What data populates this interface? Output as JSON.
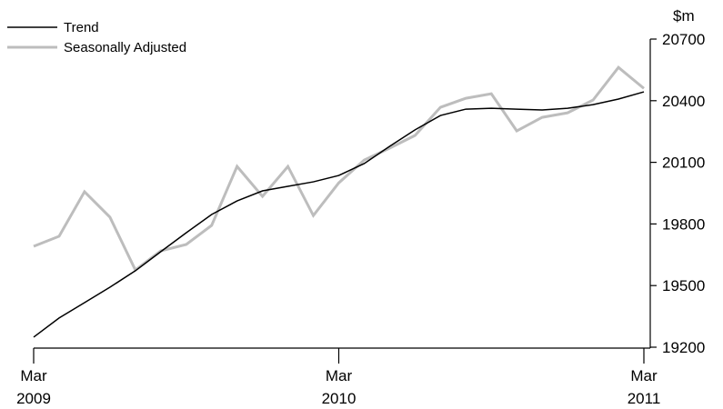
{
  "chart_data": {
    "type": "line",
    "y_label": "$m",
    "categories": [
      "Mar 2009",
      null,
      null,
      null,
      null,
      null,
      null,
      null,
      null,
      null,
      null,
      null,
      "Mar 2010",
      null,
      null,
      null,
      null,
      null,
      null,
      null,
      null,
      null,
      null,
      null,
      "Mar 2011"
    ],
    "series": [
      {
        "name": "Trend",
        "color": "#000000",
        "values": [
          19249,
          19342,
          19417,
          19492,
          19572,
          19665,
          19757,
          19846,
          19912,
          19961,
          19983,
          20005,
          20036,
          20094,
          20178,
          20258,
          20328,
          20359,
          20363,
          20359,
          20355,
          20363,
          20381,
          20408,
          20443
        ]
      },
      {
        "name": "Seasonally Adjusted",
        "color": "#bdbdbd",
        "values": [
          19691,
          19740,
          19957,
          19833,
          19576,
          19669,
          19700,
          19793,
          20080,
          19934,
          20080,
          19841,
          20000,
          20111,
          20169,
          20231,
          20368,
          20412,
          20434,
          20253,
          20319,
          20341,
          20403,
          20562,
          20460
        ]
      }
    ],
    "ylim": [
      19200,
      20700
    ],
    "yticks": [
      19200,
      19500,
      19800,
      20100,
      20400,
      20700
    ],
    "legend": "upper left"
  }
}
